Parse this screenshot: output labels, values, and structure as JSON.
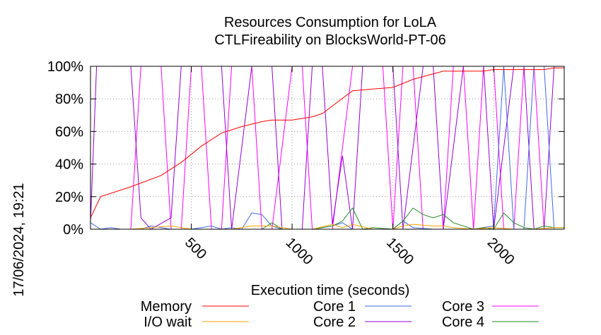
{
  "chart_data": {
    "type": "line",
    "title": "Resources Consumption for LoLA",
    "subtitle": "CTLFireability on BlocksWorld-PT-06",
    "xlabel": "Execution time (seconds)",
    "ylabel": "",
    "timestamp": "17/06/2024, 19:21",
    "xlim": [
      0,
      2350
    ],
    "ylim": [
      0,
      100
    ],
    "xticks": [
      500,
      1000,
      1500,
      2000
    ],
    "xtick_labels": [
      "500",
      "1000",
      "1500",
      "2000"
    ],
    "yticks": [
      0,
      20,
      40,
      60,
      80,
      100
    ],
    "ytick_labels": [
      "0%",
      "20%",
      "40%",
      "60%",
      "80%",
      "100%"
    ],
    "grid": true,
    "legend_position": "bottom",
    "series": [
      {
        "name": "Memory",
        "color": "#ff0000",
        "points": [
          [
            0,
            7
          ],
          [
            50,
            20
          ],
          [
            200,
            26
          ],
          [
            350,
            33
          ],
          [
            450,
            41
          ],
          [
            550,
            51
          ],
          [
            650,
            59
          ],
          [
            750,
            63
          ],
          [
            850,
            66
          ],
          [
            900,
            67
          ],
          [
            1000,
            67
          ],
          [
            1100,
            69
          ],
          [
            1150,
            71
          ],
          [
            1300,
            85
          ],
          [
            1400,
            86
          ],
          [
            1500,
            87
          ],
          [
            1600,
            92
          ],
          [
            1750,
            97
          ],
          [
            1850,
            97
          ],
          [
            1950,
            97
          ],
          [
            2000,
            98
          ],
          [
            2100,
            98
          ],
          [
            2150,
            98
          ],
          [
            2250,
            98
          ],
          [
            2300,
            99
          ],
          [
            2350,
            99
          ]
        ]
      },
      {
        "name": "I/O wait",
        "color": "#ffa500",
        "points": [
          [
            0,
            0
          ],
          [
            100,
            0
          ],
          [
            200,
            0
          ],
          [
            300,
            1
          ],
          [
            400,
            2
          ],
          [
            500,
            0
          ],
          [
            600,
            0
          ],
          [
            700,
            0
          ],
          [
            800,
            2
          ],
          [
            900,
            2
          ],
          [
            1000,
            0
          ],
          [
            1100,
            0
          ],
          [
            1200,
            3
          ],
          [
            1250,
            1
          ],
          [
            1300,
            3
          ],
          [
            1400,
            0
          ],
          [
            1500,
            0
          ],
          [
            1550,
            2
          ],
          [
            1600,
            3
          ],
          [
            1700,
            2
          ],
          [
            1750,
            2
          ],
          [
            1800,
            1
          ],
          [
            1900,
            0
          ],
          [
            2000,
            1
          ],
          [
            2100,
            0
          ],
          [
            2200,
            0
          ],
          [
            2300,
            1
          ],
          [
            2350,
            1
          ]
        ]
      },
      {
        "name": "Core 1",
        "color": "#4169e1",
        "points": [
          [
            0,
            4
          ],
          [
            50,
            0
          ],
          [
            100,
            1
          ],
          [
            150,
            0
          ],
          [
            200,
            0
          ],
          [
            250,
            0
          ],
          [
            300,
            2
          ],
          [
            350,
            1
          ],
          [
            400,
            0
          ],
          [
            500,
            0
          ],
          [
            550,
            1
          ],
          [
            600,
            2
          ],
          [
            650,
            0
          ],
          [
            700,
            1
          ],
          [
            750,
            0
          ],
          [
            800,
            10
          ],
          [
            850,
            9
          ],
          [
            900,
            2
          ],
          [
            950,
            0
          ],
          [
            1050,
            0
          ],
          [
            1100,
            0
          ],
          [
            1150,
            1
          ],
          [
            1200,
            2
          ],
          [
            1250,
            4
          ],
          [
            1300,
            0
          ],
          [
            1400,
            0
          ],
          [
            1450,
            0
          ],
          [
            1500,
            0
          ],
          [
            1550,
            5
          ],
          [
            1600,
            1
          ],
          [
            1700,
            0
          ],
          [
            1800,
            0
          ],
          [
            1900,
            0
          ],
          [
            2000,
            2
          ],
          [
            2050,
            100
          ],
          [
            2100,
            0
          ],
          [
            2150,
            0
          ],
          [
            2200,
            100
          ],
          [
            2250,
            100
          ],
          [
            2300,
            0
          ],
          [
            2350,
            0
          ]
        ]
      },
      {
        "name": "Core 2",
        "color": "#9400d3",
        "points": [
          [
            0,
            4
          ],
          [
            30,
            100
          ],
          [
            200,
            100
          ],
          [
            250,
            7
          ],
          [
            300,
            0
          ],
          [
            400,
            7
          ],
          [
            450,
            100
          ],
          [
            650,
            100
          ],
          [
            700,
            0
          ],
          [
            800,
            100
          ],
          [
            900,
            100
          ],
          [
            950,
            0
          ],
          [
            1050,
            0
          ],
          [
            1100,
            100
          ],
          [
            1150,
            100
          ],
          [
            1200,
            3
          ],
          [
            1250,
            45
          ],
          [
            1300,
            0
          ],
          [
            1350,
            100
          ],
          [
            1500,
            100
          ],
          [
            1550,
            0
          ],
          [
            1650,
            100
          ],
          [
            1700,
            100
          ],
          [
            1750,
            0
          ],
          [
            1850,
            100
          ],
          [
            1950,
            100
          ],
          [
            2000,
            0
          ],
          [
            2100,
            100
          ],
          [
            2150,
            100
          ],
          [
            2200,
            0
          ],
          [
            2250,
            0
          ],
          [
            2300,
            100
          ],
          [
            2350,
            100
          ]
        ]
      },
      {
        "name": "Core 3",
        "color": "#ff00ff",
        "points": [
          [
            0,
            0
          ],
          [
            100,
            0
          ],
          [
            200,
            0
          ],
          [
            250,
            100
          ],
          [
            350,
            100
          ],
          [
            400,
            0
          ],
          [
            450,
            0
          ],
          [
            500,
            100
          ],
          [
            550,
            100
          ],
          [
            600,
            0
          ],
          [
            650,
            0
          ],
          [
            700,
            100
          ],
          [
            800,
            100
          ],
          [
            850,
            0
          ],
          [
            900,
            0
          ],
          [
            1000,
            100
          ],
          [
            1050,
            100
          ],
          [
            1100,
            0
          ],
          [
            1200,
            0
          ],
          [
            1300,
            100
          ],
          [
            1450,
            100
          ],
          [
            1500,
            0
          ],
          [
            1550,
            100
          ],
          [
            1600,
            100
          ],
          [
            1650,
            0
          ],
          [
            1750,
            0
          ],
          [
            1800,
            100
          ],
          [
            1850,
            100
          ],
          [
            1900,
            0
          ],
          [
            1950,
            100
          ],
          [
            2000,
            100
          ],
          [
            2050,
            0
          ],
          [
            2100,
            0
          ],
          [
            2150,
            100
          ],
          [
            2200,
            100
          ],
          [
            2250,
            0
          ],
          [
            2350,
            0
          ]
        ]
      },
      {
        "name": "Core 4",
        "color": "#228b22",
        "points": [
          [
            0,
            0
          ],
          [
            100,
            0
          ],
          [
            200,
            0
          ],
          [
            300,
            0
          ],
          [
            400,
            0
          ],
          [
            500,
            0
          ],
          [
            600,
            0
          ],
          [
            700,
            0
          ],
          [
            800,
            0
          ],
          [
            850,
            0
          ],
          [
            900,
            4
          ],
          [
            950,
            0
          ],
          [
            1000,
            0
          ],
          [
            1100,
            0
          ],
          [
            1200,
            2
          ],
          [
            1250,
            5
          ],
          [
            1300,
            13
          ],
          [
            1350,
            0
          ],
          [
            1400,
            1
          ],
          [
            1500,
            0
          ],
          [
            1550,
            5
          ],
          [
            1600,
            13
          ],
          [
            1650,
            9
          ],
          [
            1700,
            7
          ],
          [
            1750,
            9
          ],
          [
            1800,
            4
          ],
          [
            1900,
            0
          ],
          [
            1950,
            1
          ],
          [
            2000,
            0
          ],
          [
            2050,
            10
          ],
          [
            2100,
            4
          ],
          [
            2150,
            1
          ],
          [
            2200,
            0
          ],
          [
            2250,
            2
          ],
          [
            2300,
            1
          ],
          [
            2350,
            1
          ]
        ]
      }
    ]
  }
}
